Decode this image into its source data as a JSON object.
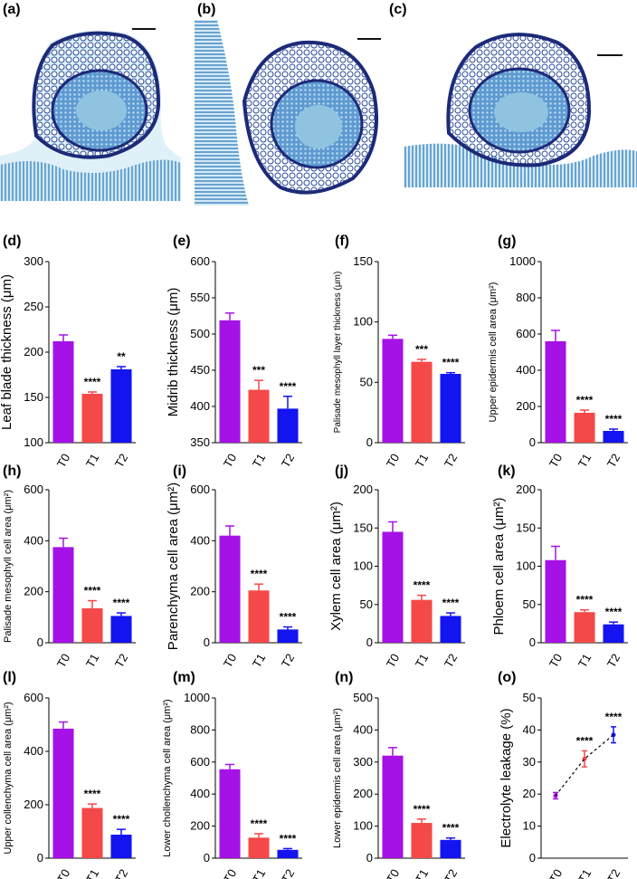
{
  "figure": {
    "micrographs": [
      {
        "label": "(a)"
      },
      {
        "label": "(b)"
      },
      {
        "label": "(c)"
      }
    ],
    "colors": {
      "T0": "#a512e6",
      "T1": "#f54848",
      "T2": "#1414f0",
      "tissue_dark": "#1c2a78",
      "tissue_mid": "#3f78c2",
      "tissue_light": "#8fc3e0"
    }
  },
  "chart_data": [
    {
      "id": "d",
      "label": "(d)",
      "type": "bar",
      "categories": [
        "T0",
        "T1",
        "T2"
      ],
      "values": [
        212,
        154,
        181
      ],
      "errors": [
        7,
        2,
        3
      ],
      "significance": [
        "",
        "****",
        "**"
      ],
      "ylabel": "Leaf blade thickness (μm)",
      "ylim": [
        100,
        300
      ],
      "yticks": [
        100,
        150,
        200,
        250,
        300
      ]
    },
    {
      "id": "e",
      "label": "(e)",
      "type": "bar",
      "categories": [
        "T0",
        "T1",
        "T2"
      ],
      "values": [
        519,
        423,
        397
      ],
      "errors": [
        10,
        13,
        17
      ],
      "significance": [
        "",
        "***",
        "****"
      ],
      "ylabel": "Midrib thickness (μm)",
      "ylim": [
        350,
        600
      ],
      "yticks": [
        350,
        400,
        450,
        500,
        550,
        600
      ]
    },
    {
      "id": "f",
      "label": "(f)",
      "type": "bar",
      "categories": [
        "T0",
        "T1",
        "T2"
      ],
      "values": [
        86,
        67,
        57
      ],
      "errors": [
        3,
        2,
        1
      ],
      "significance": [
        "",
        "***",
        "****"
      ],
      "ylabel": "Palisade mesophyll layer thickness (μm)",
      "ylim": [
        0,
        150
      ],
      "yticks": [
        0,
        50,
        100,
        150
      ]
    },
    {
      "id": "g",
      "label": "(g)",
      "type": "bar",
      "categories": [
        "T0",
        "T1",
        "T2"
      ],
      "values": [
        560,
        165,
        65
      ],
      "errors": [
        60,
        15,
        10
      ],
      "significance": [
        "",
        "****",
        "****"
      ],
      "ylabel": "Upper epidermis cell area (μm²)",
      "ylim": [
        0,
        1000
      ],
      "yticks": [
        0,
        200,
        400,
        600,
        800,
        1000
      ]
    },
    {
      "id": "h",
      "label": "(h)",
      "type": "bar",
      "categories": [
        "T0",
        "T1",
        "T2"
      ],
      "values": [
        375,
        135,
        105
      ],
      "errors": [
        35,
        30,
        12
      ],
      "significance": [
        "",
        "****",
        "****"
      ],
      "ylabel": "Palisade mesophyll cell area (μm²)",
      "ylim": [
        0,
        600
      ],
      "yticks": [
        0,
        200,
        400,
        600
      ]
    },
    {
      "id": "i",
      "label": "(i)",
      "type": "bar",
      "categories": [
        "T0",
        "T1",
        "T2"
      ],
      "values": [
        420,
        205,
        52
      ],
      "errors": [
        38,
        25,
        10
      ],
      "significance": [
        "",
        "****",
        "****"
      ],
      "ylabel": "Parenchyma cell area (μm²)",
      "ylim": [
        0,
        600
      ],
      "yticks": [
        0,
        200,
        400,
        600
      ]
    },
    {
      "id": "j",
      "label": "(j)",
      "type": "bar",
      "categories": [
        "T0",
        "T1",
        "T2"
      ],
      "values": [
        145,
        56,
        35
      ],
      "errors": [
        13,
        6,
        4
      ],
      "significance": [
        "",
        "****",
        "****"
      ],
      "ylabel": "Xylem cell area (μm²)",
      "ylim": [
        0,
        200
      ],
      "yticks": [
        0,
        50,
        100,
        150,
        200
      ]
    },
    {
      "id": "k",
      "label": "(k)",
      "type": "bar",
      "categories": [
        "T0",
        "T1",
        "T2"
      ],
      "values": [
        108,
        40,
        24
      ],
      "errors": [
        18,
        3,
        3
      ],
      "significance": [
        "",
        "****",
        "****"
      ],
      "ylabel": "Phloem cell area (μm²)",
      "ylim": [
        0,
        200
      ],
      "yticks": [
        0,
        50,
        100,
        150,
        200
      ]
    },
    {
      "id": "l",
      "label": "(l)",
      "type": "bar",
      "categories": [
        "T0",
        "T1",
        "T2"
      ],
      "values": [
        485,
        188,
        88
      ],
      "errors": [
        25,
        15,
        20
      ],
      "significance": [
        "",
        "****",
        "****"
      ],
      "ylabel": "Upper collenchyma cell area (μm²)",
      "ylim": [
        0,
        600
      ],
      "yticks": [
        0,
        200,
        400,
        600
      ]
    },
    {
      "id": "m",
      "label": "(m)",
      "type": "bar",
      "categories": [
        "T0",
        "T1",
        "T2"
      ],
      "values": [
        555,
        128,
        52
      ],
      "errors": [
        30,
        25,
        8
      ],
      "significance": [
        "",
        "****",
        "****"
      ],
      "ylabel": "Lower chollenchyma cell area (μm²)",
      "ylim": [
        0,
        1000
      ],
      "yticks": [
        0,
        200,
        400,
        600,
        800,
        1000
      ]
    },
    {
      "id": "n",
      "label": "(n)",
      "type": "bar",
      "categories": [
        "T0",
        "T1",
        "T2"
      ],
      "values": [
        320,
        110,
        57
      ],
      "errors": [
        25,
        12,
        6
      ],
      "significance": [
        "",
        "****",
        "****"
      ],
      "ylabel": "Lower epidermis cell area (μm²)",
      "ylim": [
        0,
        500
      ],
      "yticks": [
        0,
        100,
        200,
        300,
        400,
        500
      ]
    },
    {
      "id": "o",
      "label": "(o)",
      "type": "line",
      "categories": [
        "T0",
        "T1",
        "T2"
      ],
      "values": [
        19.5,
        31,
        38.5
      ],
      "errors": [
        1,
        2.5,
        2.5
      ],
      "significance": [
        "",
        "****",
        "****"
      ],
      "ylabel": "Electrolyte leakage (%)",
      "ylim": [
        0,
        50
      ],
      "yticks": [
        0,
        10,
        20,
        30,
        40,
        50
      ]
    }
  ]
}
